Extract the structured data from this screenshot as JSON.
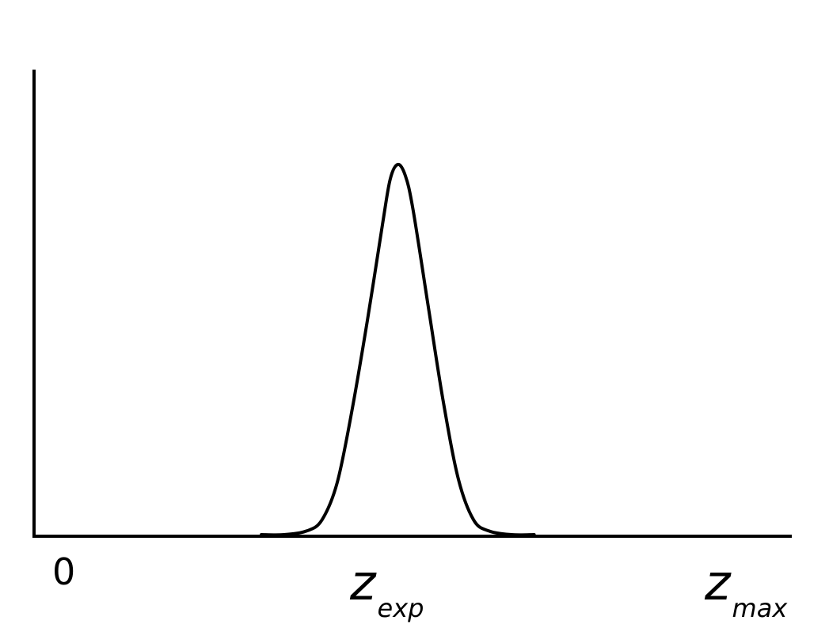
{
  "chart_data": {
    "type": "line",
    "title": "",
    "xlabel": "",
    "ylabel": "",
    "xlim": [
      0,
      1
    ],
    "ylim": [
      0,
      1
    ],
    "grid": false,
    "legend": "none",
    "x_ticks": [
      {
        "value": 0,
        "main": "0",
        "sub": ""
      },
      {
        "value": 0.48,
        "main": "z",
        "sub": "exp"
      },
      {
        "value": 1,
        "main": "z",
        "sub": "max"
      }
    ],
    "series": [
      {
        "color": "#000000",
        "x": [
          0.3,
          0.33,
          0.36,
          0.38,
          0.4,
          0.42,
          0.44,
          0.46,
          0.47,
          0.48,
          0.49,
          0.5,
          0.52,
          0.54,
          0.56,
          0.58,
          0.6,
          0.63,
          0.66
        ],
        "y": [
          0.0,
          0.0,
          0.01,
          0.04,
          0.14,
          0.34,
          0.58,
          0.84,
          0.96,
          1.0,
          0.97,
          0.88,
          0.62,
          0.36,
          0.15,
          0.04,
          0.01,
          0.0,
          0.0
        ]
      }
    ]
  }
}
